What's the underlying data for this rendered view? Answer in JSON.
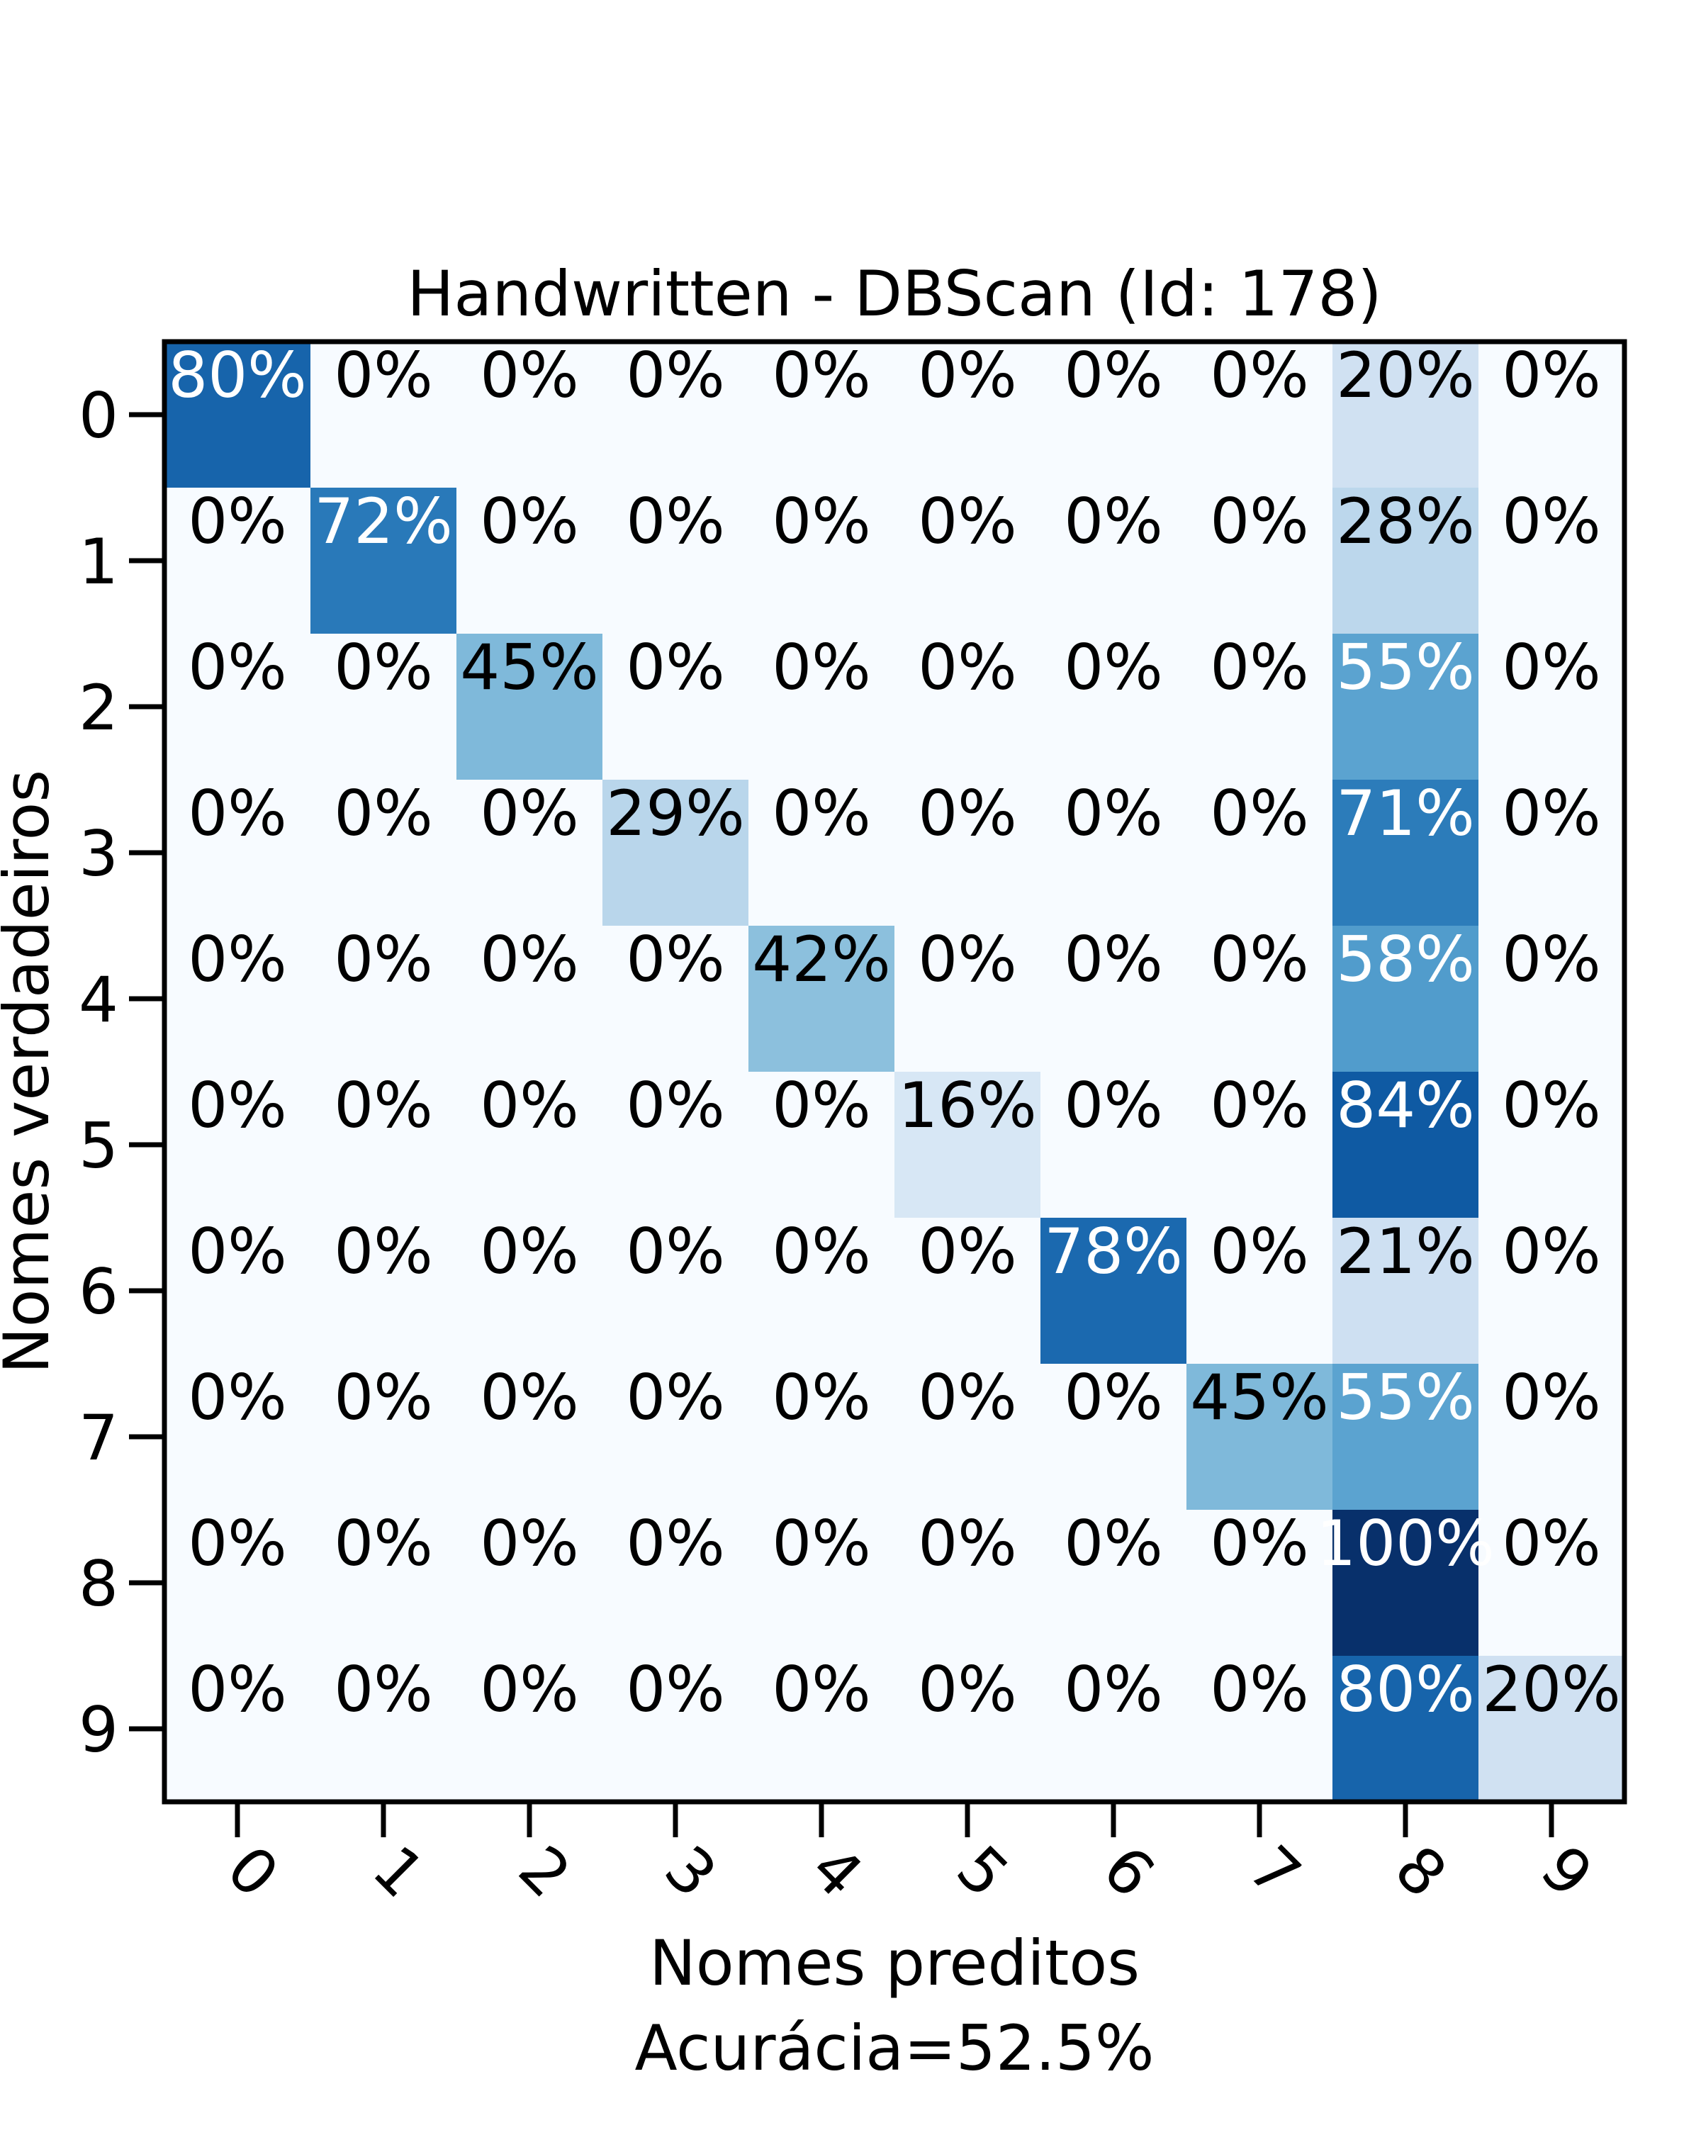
{
  "chart_data": {
    "type": "heatmap",
    "title": "Handwritten - DBScan (Id: 178)",
    "xlabel": "Nomes preditos",
    "xlabel_sub": "Acurácia=52.5%",
    "ylabel": "Nomes verdadeiros",
    "x_categories": [
      "0",
      "1",
      "2",
      "3",
      "4",
      "5",
      "6",
      "7",
      "8",
      "9"
    ],
    "y_categories": [
      "0",
      "1",
      "2",
      "3",
      "4",
      "5",
      "6",
      "7",
      "8",
      "9"
    ],
    "values": [
      [
        80,
        0,
        0,
        0,
        0,
        0,
        0,
        0,
        20,
        0
      ],
      [
        0,
        72,
        0,
        0,
        0,
        0,
        0,
        0,
        28,
        0
      ],
      [
        0,
        0,
        45,
        0,
        0,
        0,
        0,
        0,
        55,
        0
      ],
      [
        0,
        0,
        0,
        29,
        0,
        0,
        0,
        0,
        71,
        0
      ],
      [
        0,
        0,
        0,
        0,
        42,
        0,
        0,
        0,
        58,
        0
      ],
      [
        0,
        0,
        0,
        0,
        0,
        16,
        0,
        0,
        84,
        0
      ],
      [
        0,
        0,
        0,
        0,
        0,
        0,
        78,
        0,
        21,
        0
      ],
      [
        0,
        0,
        0,
        0,
        0,
        0,
        0,
        45,
        55,
        0
      ],
      [
        0,
        0,
        0,
        0,
        0,
        0,
        0,
        0,
        100,
        0
      ],
      [
        0,
        0,
        0,
        0,
        0,
        0,
        0,
        0,
        80,
        20
      ]
    ],
    "value_format": "percent",
    "colormap": "Blues",
    "vmin": 0,
    "vmax": 100,
    "grid": false,
    "legend": "none"
  }
}
